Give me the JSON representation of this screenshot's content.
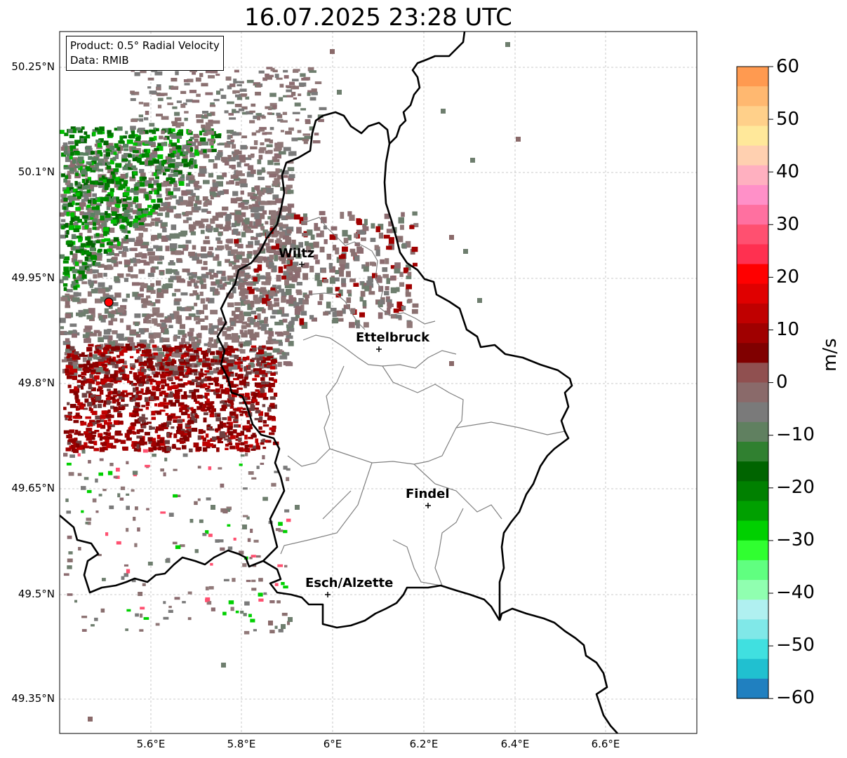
{
  "title": "16.07.2025 23:28 UTC",
  "info": {
    "product": "Product: 0.5° Radial Velocity",
    "data": "Data: RMIB"
  },
  "axes": {
    "lat_ticks": [
      "50.25°N",
      "50.1°N",
      "49.95°N",
      "49.8°N",
      "49.65°N",
      "49.5°N",
      "49.35°N"
    ],
    "lon_ticks": [
      "5.6°E",
      "5.8°E",
      "6°E",
      "6.2°E",
      "6.4°E",
      "6.6°E"
    ],
    "grid": true
  },
  "colorbar": {
    "label": "m/s",
    "ticks": [
      "60",
      "50",
      "40",
      "30",
      "20",
      "10",
      "0",
      "−10",
      "−20",
      "−30",
      "−40",
      "−50",
      "−60"
    ],
    "range": [
      -60,
      60
    ],
    "colors": [
      "#ff9a50",
      "#ffb870",
      "#ffd08a",
      "#ffe89a",
      "#ffd0b0",
      "#ffb0c0",
      "#ff90c8",
      "#ff70a0",
      "#ff5070",
      "#ff3050",
      "#ff0000",
      "#e00000",
      "#c00000",
      "#a00000",
      "#800000",
      "#905050",
      "#8a6a6a",
      "#7a7a7a",
      "#608060",
      "#308030",
      "#006400",
      "#008000",
      "#00a000",
      "#00d000",
      "#30ff30",
      "#60ff80",
      "#90ffb0",
      "#b0f0f0",
      "#80e8e8",
      "#40e0e0",
      "#20c0d0",
      "#2080c0"
    ]
  },
  "radar_site": {
    "lat": 49.913,
    "lon": 5.506
  },
  "cities": [
    {
      "name": "Wiltz"
    },
    {
      "name": "Ettelbruck"
    },
    {
      "name": "Findel"
    },
    {
      "name": "Esch/Alzette"
    }
  ],
  "colors": {
    "border": "#000000",
    "cantons": "#808080",
    "grid": "#bbbbbb",
    "radar_site": "#ff0000"
  }
}
